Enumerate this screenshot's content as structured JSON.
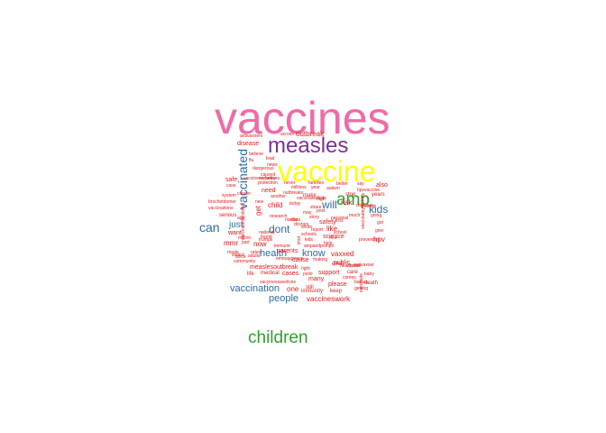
{
  "colors": {
    "pink": "#f06aa8",
    "purple": "#7b3294",
    "yellow": "#ffff00",
    "green": "#33a02c",
    "blue": "#2b6ca3",
    "red": "#e41a1c"
  },
  "words": [
    {
      "text": "vaccines",
      "tier": 1
    },
    {
      "text": "measles",
      "tier": 2
    },
    {
      "text": "vaccine",
      "tier": 3
    },
    {
      "text": "amp",
      "tier": 4
    },
    {
      "text": "children",
      "tier": 4
    },
    {
      "text": "vaccinated",
      "tier": 5
    },
    {
      "text": "can",
      "tier": 5
    },
    {
      "text": "dont",
      "tier": 5
    },
    {
      "text": "kids",
      "tier": 5
    },
    {
      "text": "will",
      "tier": 5
    },
    {
      "text": "people",
      "tier": 5
    },
    {
      "text": "vaccination",
      "tier": 5
    },
    {
      "text": "health",
      "tier": 5
    },
    {
      "text": "know",
      "tier": 5
    },
    {
      "text": "just",
      "tier": 5
    },
    {
      "text": "vaccineswork",
      "tier": 6
    },
    {
      "text": "outbreak",
      "tier": 6
    },
    {
      "text": "disease",
      "tier": 6
    },
    {
      "text": "risk",
      "tier": 6
    },
    {
      "text": "vaxxed",
      "tier": 6
    },
    {
      "text": "like",
      "tier": 6
    },
    {
      "text": "child",
      "tier": 6
    },
    {
      "text": "need",
      "tier": 6
    },
    {
      "text": "get",
      "tier": 6
    },
    {
      "text": "now",
      "tier": 6
    },
    {
      "text": "mmr",
      "tier": 6
    },
    {
      "text": "hpv",
      "tier": 6
    },
    {
      "text": "one",
      "tier": 6
    },
    {
      "text": "safe",
      "tier": 6
    },
    {
      "text": "want",
      "tier": 6
    },
    {
      "text": "science",
      "tier": 6
    },
    {
      "text": "safety",
      "tier": 6
    },
    {
      "text": "also",
      "tier": 6
    },
    {
      "text": "measlesoutbreak",
      "tier": 6
    },
    {
      "text": "cause",
      "tier": 6
    },
    {
      "text": "parents",
      "tier": 6
    },
    {
      "text": "many",
      "tier": 6
    },
    {
      "text": "public",
      "tier": 6
    },
    {
      "text": "cases",
      "tier": 6
    },
    {
      "text": "please",
      "tier": 6
    },
    {
      "text": "support",
      "tier": 6
    },
    {
      "text": "even",
      "tier": 6
    },
    {
      "text": "make",
      "tier": 6
    },
    {
      "text": "stop",
      "tier": 6
    },
    {
      "text": "medical",
      "tier": 6
    },
    {
      "text": "years",
      "tier": 6
    },
    {
      "text": "life",
      "tier": 6
    },
    {
      "text": "serious",
      "tier": 6
    },
    {
      "text": "still",
      "tier": 6
    },
    {
      "text": "care",
      "tier": 6
    },
    {
      "text": "immunity",
      "tier": 7
    },
    {
      "text": "keep",
      "tier": 7
    },
    {
      "text": "death",
      "tier": 7
    },
    {
      "text": "antivaxxers",
      "tier": 7
    },
    {
      "text": "across",
      "tier": 7
    },
    {
      "text": "flu",
      "tier": 7
    },
    {
      "text": "news",
      "tier": 7
    },
    {
      "text": "dangerous",
      "tier": 7
    },
    {
      "text": "caused",
      "tier": 7
    },
    {
      "text": "mcfunny",
      "tier": 7
    },
    {
      "text": "protection",
      "tier": 7
    },
    {
      "text": "never",
      "tier": 7
    },
    {
      "text": "families",
      "tier": 7
    },
    {
      "text": "millions",
      "tier": 7
    },
    {
      "text": "year",
      "tier": 7
    },
    {
      "text": "autism",
      "tier": 7
    },
    {
      "text": "better",
      "tier": 7
    },
    {
      "text": "say",
      "tier": 7
    },
    {
      "text": "hpvvaccine",
      "tier": 7
    },
    {
      "text": "system",
      "tier": 7
    },
    {
      "text": "outbreaks",
      "tier": 7
    },
    {
      "text": "cancer",
      "tier": 7
    },
    {
      "text": "another",
      "tier": 7
    },
    {
      "text": "today",
      "tier": 7
    },
    {
      "text": "research",
      "tier": 7
    },
    {
      "text": "age",
      "tier": 7
    },
    {
      "text": "media",
      "tier": 7
    },
    {
      "text": "vaccinations",
      "tier": 7
    },
    {
      "text": "brochetdomer",
      "tier": 7
    },
    {
      "text": "million",
      "tier": 7
    },
    {
      "text": "immune",
      "tier": 7
    },
    {
      "text": "every",
      "tier": 7
    },
    {
      "text": "prevention",
      "tier": 7
    },
    {
      "text": "give",
      "tier": 7
    },
    {
      "text": "got",
      "tier": 7
    },
    {
      "text": "baby",
      "tier": 7
    },
    {
      "text": "doctor",
      "tier": 7
    },
    {
      "text": "going",
      "tier": 7
    },
    {
      "text": "healthcare",
      "tier": 7
    },
    {
      "text": "right",
      "tier": 7
    },
    {
      "text": "polio",
      "tier": 7
    },
    {
      "text": "making",
      "tier": 7
    },
    {
      "text": "community",
      "tier": 7
    },
    {
      "text": "adults",
      "tier": 7
    },
    {
      "text": "since",
      "tier": 7
    },
    {
      "text": "part",
      "tier": 7
    },
    {
      "text": "trumps",
      "tier": 7
    },
    {
      "text": "rates",
      "tier": 7
    },
    {
      "text": "comes",
      "tier": 7
    },
    {
      "text": "getting",
      "tier": 7
    },
    {
      "text": "babies",
      "tier": 7
    },
    {
      "text": "vaccinessavelives",
      "tier": 7
    },
    {
      "text": "much",
      "tier": 7
    },
    {
      "text": "free",
      "tier": 7
    },
    {
      "text": "first",
      "tier": 7
    },
    {
      "text": "vaccinate",
      "tier": 7
    },
    {
      "text": "case",
      "tier": 7
    },
    {
      "text": "lead",
      "tier": 7
    },
    {
      "text": "believe",
      "tier": 7
    },
    {
      "text": "vaccinatedchildren",
      "tier": 7
    },
    {
      "text": "vaccinessavelives",
      "tier": 7
    },
    {
      "text": "made",
      "tier": 7
    },
    {
      "text": "stated",
      "tier": 7
    },
    {
      "text": "national",
      "tier": 7
    },
    {
      "text": "found",
      "tier": 7
    },
    {
      "text": "emmaggeaux",
      "tier": 7
    },
    {
      "text": "ampandpompii",
      "tier": 7
    },
    {
      "text": "kids",
      "tier": 7
    },
    {
      "text": "report",
      "tier": 7
    },
    {
      "text": "personal",
      "tier": 7
    },
    {
      "text": "antivaxxer",
      "tier": 7
    },
    {
      "text": "shots",
      "tier": 7
    },
    {
      "text": "shot",
      "tier": 7
    },
    {
      "text": "share",
      "tier": 7
    },
    {
      "text": "story",
      "tier": 7
    },
    {
      "text": "done",
      "tier": 7
    },
    {
      "text": "doctors",
      "tier": 7
    },
    {
      "text": "schools",
      "tier": 7
    },
    {
      "text": "vaccinatedkids",
      "tier": 7
    },
    {
      "text": "vaccinateyourkids",
      "tier": 7
    },
    {
      "text": "diseases",
      "tier": 7
    },
    {
      "text": "new",
      "tier": 7
    },
    {
      "text": "school",
      "tier": 7
    },
    {
      "text": "help",
      "tier": 7
    },
    {
      "text": "post",
      "tier": 7
    },
    {
      "text": "high",
      "tier": 7
    },
    {
      "text": "may",
      "tier": 7
    }
  ]
}
